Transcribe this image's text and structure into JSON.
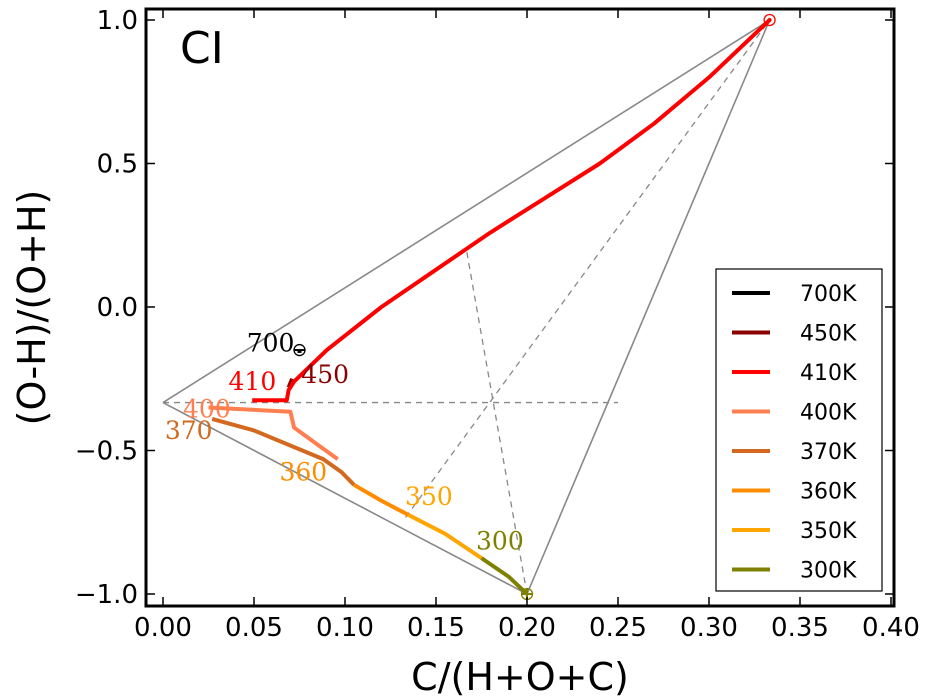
{
  "chart_data": {
    "type": "line",
    "panel_label": "CI",
    "xlabel": "C/(H+O+C)",
    "ylabel": "(O-H)/(O+H)",
    "xlim": [
      0.0,
      0.4
    ],
    "ylim": [
      -1.05,
      1.05
    ],
    "x_ticks": [
      0.0,
      0.05,
      0.1,
      0.15,
      0.2,
      0.25,
      0.3,
      0.35,
      0.4
    ],
    "x_tick_labels": [
      "0.00",
      "0.05",
      "0.10",
      "0.15",
      "0.20",
      "0.25",
      "0.30",
      "0.35",
      "0.40"
    ],
    "y_ticks": [
      1.0,
      0.5,
      0.0,
      -0.5,
      -1.0
    ],
    "y_tick_labels": [
      "1.0",
      "0.5",
      "0.0",
      "−0.5",
      "−1.0"
    ],
    "reference_lines": {
      "solid": [
        [
          [
            0.0,
            -0.333
          ],
          [
            0.3333,
            1.0
          ]
        ],
        [
          [
            0.0,
            -0.333
          ],
          [
            0.2,
            -1.0
          ]
        ],
        [
          [
            0.2,
            -1.0
          ],
          [
            0.3333,
            1.0
          ]
        ]
      ],
      "dashed": [
        [
          [
            0.0,
            -0.333
          ],
          [
            0.25,
            -0.333
          ]
        ],
        [
          [
            0.2,
            -1.0
          ],
          [
            0.1667,
            0.2
          ]
        ],
        [
          [
            0.1333,
            -0.733
          ],
          [
            0.3333,
            1.0
          ]
        ]
      ]
    },
    "markers": [
      {
        "name": "700K start",
        "x": 0.075,
        "y": -0.15,
        "symbol": "minus",
        "color": "#000000"
      },
      {
        "name": "top vertex",
        "x": 0.3333,
        "y": 1.0,
        "symbol": "dot",
        "color": "#ff0000"
      },
      {
        "name": "bottom vertex",
        "x": 0.2,
        "y": -1.0,
        "symbol": "plus",
        "color": "#808000"
      }
    ],
    "series": [
      {
        "name": "700K",
        "color": "#000000",
        "points": [
          [
            0.075,
            -0.15
          ],
          [
            0.075,
            -0.16
          ]
        ]
      },
      {
        "name": "450K",
        "color": "#8b0000",
        "points": [
          [
            0.069,
            -0.28
          ],
          [
            0.07,
            -0.265
          ],
          [
            0.071,
            -0.25
          ]
        ]
      },
      {
        "name": "410K",
        "color": "#ff0000",
        "points": [
          [
            0.049,
            -0.325
          ],
          [
            0.068,
            -0.325
          ],
          [
            0.069,
            -0.29
          ],
          [
            0.072,
            -0.26
          ],
          [
            0.09,
            -0.15
          ],
          [
            0.12,
            0.0
          ],
          [
            0.15,
            0.13
          ],
          [
            0.18,
            0.26
          ],
          [
            0.21,
            0.38
          ],
          [
            0.24,
            0.5
          ],
          [
            0.27,
            0.64
          ],
          [
            0.3,
            0.8
          ],
          [
            0.3333,
            1.0
          ]
        ]
      },
      {
        "name": "400K",
        "color": "#ff7f50",
        "points": [
          [
            0.025,
            -0.35
          ],
          [
            0.07,
            -0.365
          ],
          [
            0.072,
            -0.42
          ],
          [
            0.085,
            -0.48
          ],
          [
            0.096,
            -0.53
          ]
        ]
      },
      {
        "name": "370K",
        "color": "#d2691e",
        "points": [
          [
            0.027,
            -0.39
          ],
          [
            0.05,
            -0.43
          ],
          [
            0.088,
            -0.53
          ],
          [
            0.098,
            -0.575
          ],
          [
            0.105,
            -0.62
          ]
        ]
      },
      {
        "name": "360K",
        "color": "#ff8c00",
        "points": [
          [
            0.105,
            -0.62
          ],
          [
            0.12,
            -0.675
          ],
          [
            0.135,
            -0.725
          ]
        ]
      },
      {
        "name": "350K",
        "color": "#ffa500",
        "points": [
          [
            0.135,
            -0.725
          ],
          [
            0.155,
            -0.79
          ],
          [
            0.175,
            -0.875
          ]
        ]
      },
      {
        "name": "300K",
        "color": "#808000",
        "points": [
          [
            0.175,
            -0.875
          ],
          [
            0.19,
            -0.94
          ],
          [
            0.2,
            -1.0
          ]
        ]
      }
    ],
    "annotations": [
      {
        "text": "700",
        "x": 0.046,
        "y": -0.155,
        "color": "#000000"
      },
      {
        "text": "450",
        "x": 0.076,
        "y": -0.265,
        "color": "#8b0000"
      },
      {
        "text": "410",
        "x": 0.036,
        "y": -0.29,
        "color": "#ff0000"
      },
      {
        "text": "400",
        "x": 0.011,
        "y": -0.385,
        "color": "#ff7f50"
      },
      {
        "text": "370",
        "x": 0.001,
        "y": -0.46,
        "color": "#d2691e"
      },
      {
        "text": "360",
        "x": 0.064,
        "y": -0.605,
        "color": "#ff8c00"
      },
      {
        "text": "350",
        "x": 0.133,
        "y": -0.69,
        "color": "#ffa500"
      },
      {
        "text": "300",
        "x": 0.172,
        "y": -0.845,
        "color": "#808000"
      }
    ],
    "legend": {
      "position": "lower-right",
      "entries": [
        {
          "label": "700K",
          "color": "#000000"
        },
        {
          "label": "450K",
          "color": "#8b0000"
        },
        {
          "label": "410K",
          "color": "#ff0000"
        },
        {
          "label": "400K",
          "color": "#ff7f50"
        },
        {
          "label": "370K",
          "color": "#d2691e"
        },
        {
          "label": "360K",
          "color": "#ff8c00"
        },
        {
          "label": "350K",
          "color": "#ffa500"
        },
        {
          "label": "300K",
          "color": "#808000"
        }
      ]
    }
  }
}
